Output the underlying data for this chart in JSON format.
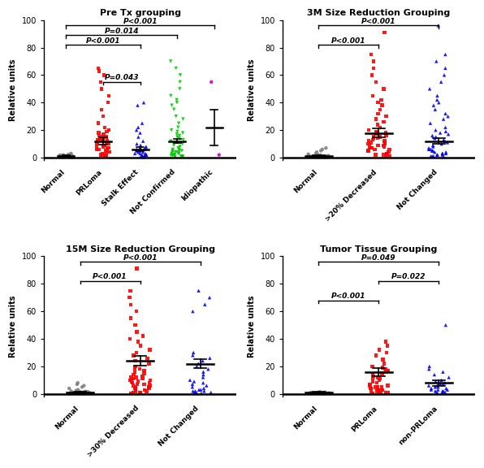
{
  "panels": [
    {
      "title": "Pre Tx grouping",
      "groups": [
        "Normal",
        "PRLoma",
        "Stalk Effect",
        "Not Confirmed",
        "Idiopathic"
      ],
      "colors": [
        "#808080",
        "#FF0000",
        "#0000FF",
        "#00CC00",
        "#CC00CC"
      ],
      "markers": [
        "o",
        "s",
        "^",
        "v",
        "o"
      ],
      "means": [
        1.0,
        12.0,
        6.0,
        12.0,
        22.0
      ],
      "sems": [
        0.5,
        2.5,
        1.5,
        1.5,
        13.0
      ],
      "data": [
        [
          0.2,
          0.3,
          0.4,
          0.5,
          0.6,
          0.7,
          0.8,
          0.9,
          1.0,
          1.1,
          1.2,
          1.4,
          1.6,
          1.8,
          2.0,
          2.2,
          2.5,
          3.0,
          0.1,
          0.3
        ],
        [
          1,
          1,
          2,
          2,
          3,
          3,
          4,
          5,
          5,
          6,
          6,
          7,
          7,
          8,
          8,
          9,
          9,
          10,
          10,
          11,
          11,
          12,
          12,
          13,
          13,
          14,
          14,
          15,
          15,
          16,
          17,
          18,
          19,
          20,
          22,
          25,
          30,
          35,
          40,
          45,
          50,
          55,
          60,
          63,
          65
        ],
        [
          0.5,
          1,
          1,
          2,
          2,
          3,
          3,
          4,
          4,
          5,
          5,
          6,
          6,
          7,
          7,
          8,
          9,
          10,
          12,
          15,
          18,
          20,
          22,
          25,
          38,
          40,
          0.5,
          1,
          2,
          3
        ],
        [
          0.5,
          0.5,
          1,
          1,
          1.5,
          2,
          2,
          3,
          3,
          4,
          4,
          5,
          5,
          6,
          7,
          8,
          9,
          10,
          11,
          12,
          13,
          14,
          15,
          16,
          17,
          18,
          19,
          20,
          22,
          25,
          28,
          30,
          35,
          38,
          40,
          42,
          45,
          50,
          55,
          60,
          65,
          70,
          0.5,
          1,
          1.5,
          2,
          3,
          4,
          5,
          6
        ],
        [
          2,
          55
        ]
      ],
      "significance": [
        {
          "groups": [
            0,
            4
          ],
          "label": "P<0.001",
          "y": 96
        },
        {
          "groups": [
            0,
            3
          ],
          "label": "P=0.014",
          "y": 89
        },
        {
          "groups": [
            0,
            2
          ],
          "label": "P<0.001",
          "y": 82
        },
        {
          "groups": [
            1,
            2
          ],
          "label": "P=0.043",
          "y": 55
        }
      ],
      "ylim": [
        -2,
        100
      ],
      "yticks": [
        0,
        20,
        40,
        60,
        80,
        100
      ]
    },
    {
      "title": "3M Size Reduction Grouping",
      "groups": [
        "Normal",
        ">20% Decreased",
        "Not Changed"
      ],
      "colors": [
        "#808080",
        "#FF0000",
        "#0000FF"
      ],
      "markers": [
        "o",
        "s",
        "^"
      ],
      "means": [
        1.0,
        18.0,
        12.0
      ],
      "sems": [
        0.5,
        3.0,
        2.0
      ],
      "data": [
        [
          0.2,
          0.3,
          0.4,
          0.5,
          0.6,
          0.7,
          0.8,
          0.9,
          1.0,
          1.2,
          1.4,
          1.6,
          1.8,
          2.0,
          2.5,
          3.0,
          4.0,
          5.0,
          6.0,
          7.0,
          0.1,
          0.2,
          0.3,
          0.4,
          0.5
        ],
        [
          1,
          1,
          2,
          2,
          3,
          3,
          4,
          5,
          5,
          6,
          6,
          7,
          7,
          8,
          8,
          9,
          9,
          10,
          10,
          11,
          11,
          12,
          12,
          13,
          14,
          14,
          15,
          15,
          16,
          17,
          18,
          18,
          19,
          20,
          22,
          24,
          26,
          28,
          30,
          32,
          35,
          38,
          40,
          42,
          45,
          50,
          55,
          60,
          65,
          70,
          75,
          91
        ],
        [
          1,
          1,
          2,
          2,
          3,
          3,
          4,
          5,
          5,
          6,
          6,
          7,
          8,
          9,
          10,
          11,
          12,
          13,
          14,
          15,
          16,
          17,
          18,
          19,
          20,
          22,
          25,
          28,
          30,
          32,
          35,
          38,
          40,
          42,
          45,
          50,
          55,
          60,
          65,
          70,
          75,
          96,
          0.5,
          1,
          2,
          3,
          4,
          5
        ]
      ],
      "significance": [
        {
          "groups": [
            0,
            2
          ],
          "label": "P<0.001",
          "y": 96
        },
        {
          "groups": [
            0,
            1
          ],
          "label": "P<0.001",
          "y": 82
        }
      ],
      "ylim": [
        -2,
        100
      ],
      "yticks": [
        0,
        20,
        40,
        60,
        80,
        100
      ]
    },
    {
      "title": "15M Size Reduction Grouping",
      "groups": [
        "Normal",
        ">30% Decreased",
        "Not Changed"
      ],
      "colors": [
        "#808080",
        "#FF0000",
        "#0000FF"
      ],
      "markers": [
        "o",
        "s",
        "^"
      ],
      "means": [
        1.0,
        24.0,
        22.0
      ],
      "sems": [
        0.5,
        3.5,
        3.5
      ],
      "data": [
        [
          0.2,
          0.3,
          0.4,
          0.5,
          0.6,
          0.7,
          0.8,
          0.9,
          1.0,
          1.2,
          1.4,
          1.6,
          1.8,
          2.0,
          2.5,
          3.0,
          4.0,
          5.0,
          6.0,
          7.0,
          8.0,
          0.1,
          0.2,
          0.3,
          0.5,
          0.6
        ],
        [
          1,
          1,
          2,
          2,
          3,
          3,
          4,
          4,
          5,
          5,
          6,
          6,
          7,
          7,
          8,
          8,
          9,
          9,
          10,
          10,
          11,
          11,
          12,
          12,
          13,
          14,
          15,
          16,
          17,
          18,
          19,
          20,
          22,
          24,
          26,
          28,
          30,
          32,
          35,
          38,
          40,
          42,
          45,
          50,
          55,
          60,
          65,
          70,
          75,
          91,
          0.5,
          1
        ],
        [
          1,
          1,
          2,
          2,
          3,
          3,
          4,
          5,
          6,
          7,
          8,
          9,
          10,
          12,
          14,
          16,
          18,
          20,
          22,
          24,
          26,
          28,
          30,
          60,
          65,
          70,
          75,
          0.5,
          1,
          2
        ]
      ],
      "significance": [
        {
          "groups": [
            0,
            2
          ],
          "label": "P<0.001",
          "y": 96
        },
        {
          "groups": [
            0,
            1
          ],
          "label": "P<0.001",
          "y": 82
        }
      ],
      "ylim": [
        -2,
        100
      ],
      "yticks": [
        0,
        20,
        40,
        60,
        80,
        100
      ]
    },
    {
      "title": "Tumor Tissue Grouping",
      "groups": [
        "Normal",
        "PRLoma",
        "non-PRLoma"
      ],
      "colors": [
        "#808080",
        "#FF0000",
        "#0000FF"
      ],
      "markers": [
        "o",
        "s",
        "^"
      ],
      "means": [
        1.0,
        16.0,
        8.0
      ],
      "sems": [
        0.5,
        3.0,
        2.0
      ],
      "data": [
        [
          0.2,
          0.3,
          0.4,
          0.5,
          0.6,
          0.7,
          0.8,
          0.9,
          1.0,
          1.2,
          1.5
        ],
        [
          1,
          1,
          2,
          2,
          3,
          3,
          4,
          5,
          5,
          6,
          6,
          7,
          8,
          9,
          10,
          11,
          12,
          12,
          13,
          14,
          15,
          16,
          17,
          18,
          19,
          20,
          22,
          25,
          28,
          30,
          32,
          35,
          38,
          0.5,
          1,
          2,
          3,
          4,
          5
        ],
        [
          1,
          1,
          2,
          2,
          3,
          3,
          4,
          5,
          6,
          7,
          8,
          9,
          10,
          12,
          14,
          16,
          18,
          20,
          50,
          0.5,
          1,
          2,
          3,
          4,
          5,
          6,
          7
        ]
      ],
      "significance": [
        {
          "groups": [
            0,
            2
          ],
          "label": "P=0.049",
          "y": 96
        },
        {
          "groups": [
            1,
            2
          ],
          "label": "P=0.022",
          "y": 82
        },
        {
          "groups": [
            0,
            1
          ],
          "label": "P<0.001",
          "y": 68
        }
      ],
      "ylim": [
        -2,
        100
      ],
      "yticks": [
        0,
        20,
        40,
        60,
        80,
        100
      ]
    }
  ]
}
